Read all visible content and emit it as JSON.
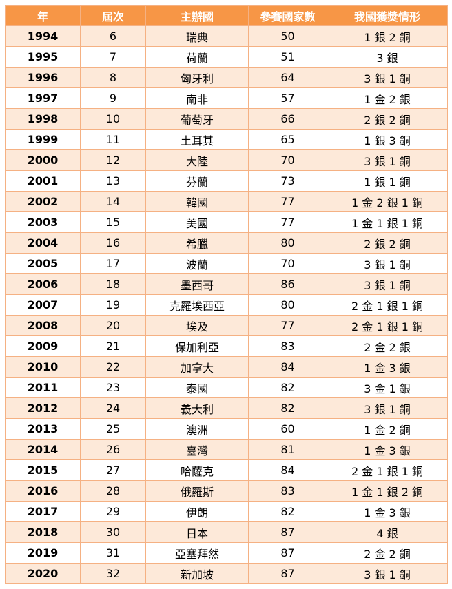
{
  "headers": [
    "年",
    "屆次",
    "主辦國",
    "參賽國家數",
    "我國獲獎情形"
  ],
  "rows": [
    [
      "1994",
      "6",
      "瑞典",
      "50",
      "1 銀 2 銅"
    ],
    [
      "1995",
      "7",
      "荷蘭",
      "51",
      "3 銀"
    ],
    [
      "1996",
      "8",
      "匈牙利",
      "64",
      "3 銀 1 銅"
    ],
    [
      "1997",
      "9",
      "南非",
      "57",
      "1 金 2 銀"
    ],
    [
      "1998",
      "10",
      "葡萄牙",
      "66",
      "2 銀 2 銅"
    ],
    [
      "1999",
      "11",
      "土耳其",
      "65",
      "1 銀 3 銅"
    ],
    [
      "2000",
      "12",
      "大陸",
      "70",
      "3 銀 1 銅"
    ],
    [
      "2001",
      "13",
      "芬蘭",
      "73",
      "1 銀 1 銅"
    ],
    [
      "2002",
      "14",
      "韓國",
      "77",
      "1 金 2 銀 1 銅"
    ],
    [
      "2003",
      "15",
      "美國",
      "77",
      "1 金 1 銀 1 銅"
    ],
    [
      "2004",
      "16",
      "希臘",
      "80",
      "2 銀 2 銅"
    ],
    [
      "2005",
      "17",
      "波蘭",
      "70",
      "3 銀 1 銅"
    ],
    [
      "2006",
      "18",
      "墨西哥",
      "86",
      "3 銀 1 銅"
    ],
    [
      "2007",
      "19",
      "克羅埃西亞",
      "80",
      "2 金 1 銀 1 銅"
    ],
    [
      "2008",
      "20",
      "埃及",
      "77",
      "2 金 1 銀 1 銅"
    ],
    [
      "2009",
      "21",
      "保加利亞",
      "83",
      "2 金 2 銀"
    ],
    [
      "2010",
      "22",
      "加拿大",
      "84",
      "1 金 3 銀"
    ],
    [
      "2011",
      "23",
      "泰國",
      "82",
      "3 金 1 銀"
    ],
    [
      "2012",
      "24",
      "義大利",
      "82",
      "3 銀 1 銅"
    ],
    [
      "2013",
      "25",
      "澳洲",
      "60",
      "1 金 2 銅"
    ],
    [
      "2014",
      "26",
      "臺灣",
      "81",
      "1 金 3 銀"
    ],
    [
      "2015",
      "27",
      "哈薩克",
      "84",
      "2 金 1 銀 1 銅"
    ],
    [
      "2016",
      "28",
      "俄羅斯",
      "83",
      "1 金 1 銀 2 銅"
    ],
    [
      "2017",
      "29",
      "伊朗",
      "82",
      "1 金 3 銀"
    ],
    [
      "2018",
      "30",
      "日本",
      "87",
      "4 銀"
    ],
    [
      "2019",
      "31",
      "亞塞拜然",
      "87",
      "2 金 2 銅"
    ],
    [
      "2020",
      "32",
      "新加坡",
      "87",
      "3 銀 1 銅"
    ]
  ],
  "colors": {
    "header_bg": "#f79646",
    "band_bg": "#fde9d9",
    "border": "#f5b183"
  }
}
